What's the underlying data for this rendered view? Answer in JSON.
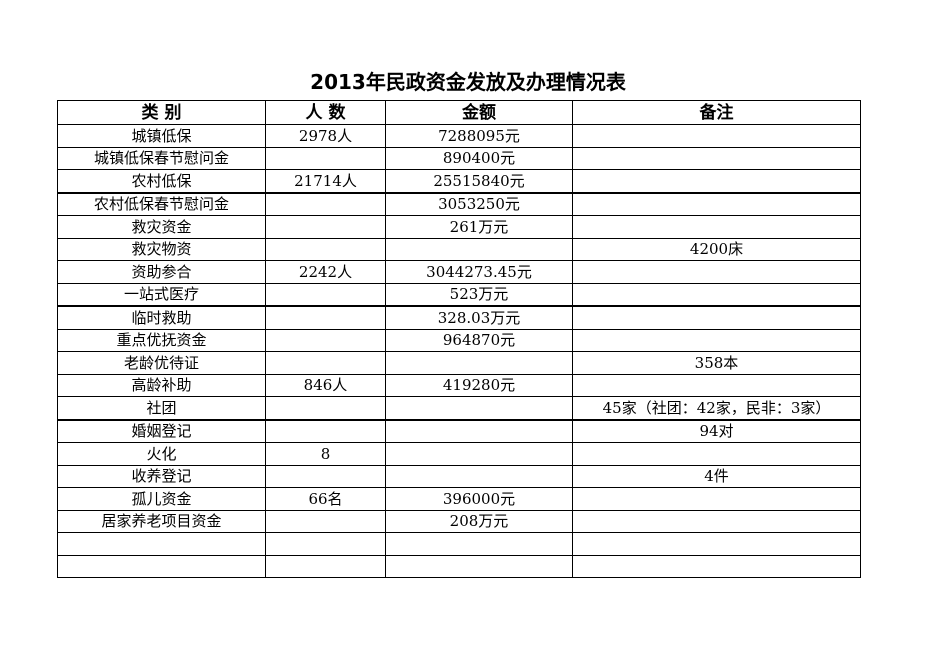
{
  "title": "2013年民政资金发放及办理情况表",
  "headers": [
    "类 别",
    "人 数",
    "金额",
    "备注"
  ],
  "rows": [
    [
      "城镇低保",
      "2978人",
      "7288095元",
      ""
    ],
    [
      "城镇低保春节慰问金",
      "",
      "890400元",
      ""
    ],
    [
      "农村低保",
      "21714人",
      "25515840元",
      ""
    ],
    [
      "农村低保春节慰问金",
      "",
      "3053250元",
      ""
    ],
    [
      "救灾资金",
      "",
      "261万元",
      ""
    ],
    [
      "救灾物资",
      "",
      "",
      "4200床"
    ],
    [
      "资助参合",
      "2242人",
      "3044273.45元",
      ""
    ],
    [
      "一站式医疗",
      "",
      "523万元",
      ""
    ],
    [
      "临时救助",
      "",
      "328.03万元",
      ""
    ],
    [
      "重点优抚资金",
      "",
      "964870元",
      ""
    ],
    [
      "老龄优待证",
      "",
      "",
      "358本"
    ],
    [
      "高龄补助",
      "846人",
      "419280元",
      ""
    ],
    [
      "社团",
      "",
      "",
      "45家（社团：42家，民非：3家）"
    ],
    [
      "婚姻登记",
      "",
      "",
      "94对"
    ],
    [
      "火化",
      "8",
      "",
      ""
    ],
    [
      "收养登记",
      "",
      "",
      "4件"
    ],
    [
      "孤儿资金",
      "66名",
      "396000元",
      ""
    ],
    [
      "居家养老项目资金",
      "",
      "208万元",
      ""
    ],
    [
      "",
      "",
      "",
      ""
    ],
    [
      "",
      "",
      "",
      ""
    ]
  ]
}
